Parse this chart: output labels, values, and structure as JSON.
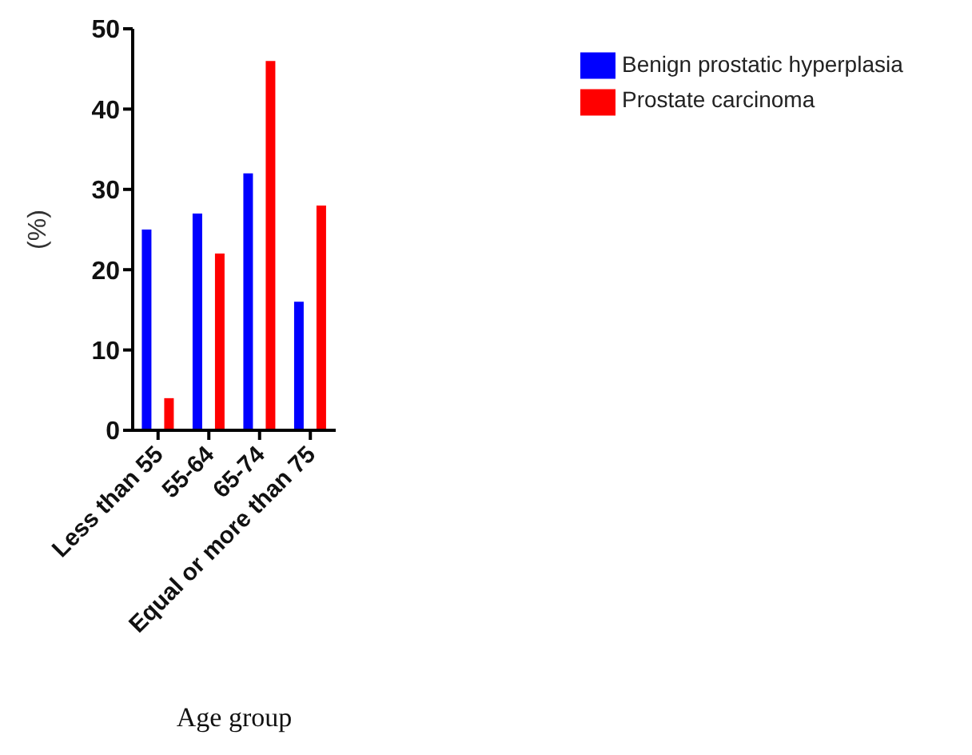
{
  "chart_data": {
    "type": "bar",
    "xlabel": "Age group",
    "ylabel": "(%)",
    "categories": [
      "Less than 55",
      "55-64",
      "65-74",
      "Equal or more than 75"
    ],
    "series": [
      {
        "name": "Benign prostatic hyperplasia",
        "color": "#0000ff",
        "values": [
          25,
          27,
          32,
          16
        ]
      },
      {
        "name": "Prostate carcinoma",
        "color": "#ff0000",
        "values": [
          4,
          22,
          46,
          28
        ]
      }
    ],
    "ylim": [
      0,
      50
    ],
    "yticks": [
      0,
      10,
      20,
      30,
      40,
      50
    ],
    "grid": false,
    "legend": "top right"
  }
}
